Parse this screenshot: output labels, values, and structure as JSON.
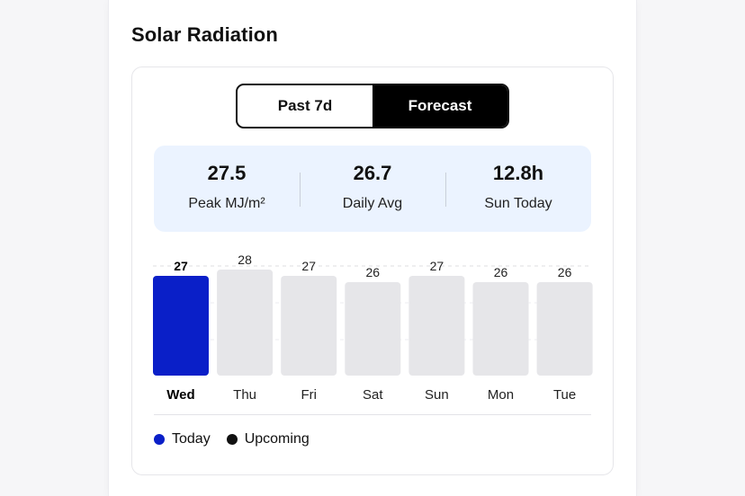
{
  "section": {
    "title": "Solar Radiation"
  },
  "tabs": [
    {
      "label": "Past 7d",
      "active": false
    },
    {
      "label": "Forecast",
      "active": true
    }
  ],
  "stats": [
    {
      "value": "27.5",
      "label": "Peak MJ/m²"
    },
    {
      "value": "26.7",
      "label": "Daily Avg"
    },
    {
      "value": "12.8h",
      "label": "Sun Today"
    }
  ],
  "legend": [
    {
      "label": "Today",
      "color": "#0a1fc8"
    },
    {
      "label": "Upcoming",
      "color": "#111111"
    }
  ],
  "colors": {
    "today_bar": "#0a1fc8",
    "upcoming_bar": "#e6e6e9",
    "tab_active_bg": "#000000",
    "stats_bg": "#ebf3ff"
  },
  "chart_data": {
    "type": "bar",
    "categories": [
      "Wed",
      "Thu",
      "Fri",
      "Sat",
      "Sun",
      "Mon",
      "Tue"
    ],
    "values": [
      27,
      28,
      27,
      26,
      27,
      26,
      26
    ],
    "highlight_index": 0,
    "ylim": [
      0,
      30
    ],
    "grid": true
  }
}
